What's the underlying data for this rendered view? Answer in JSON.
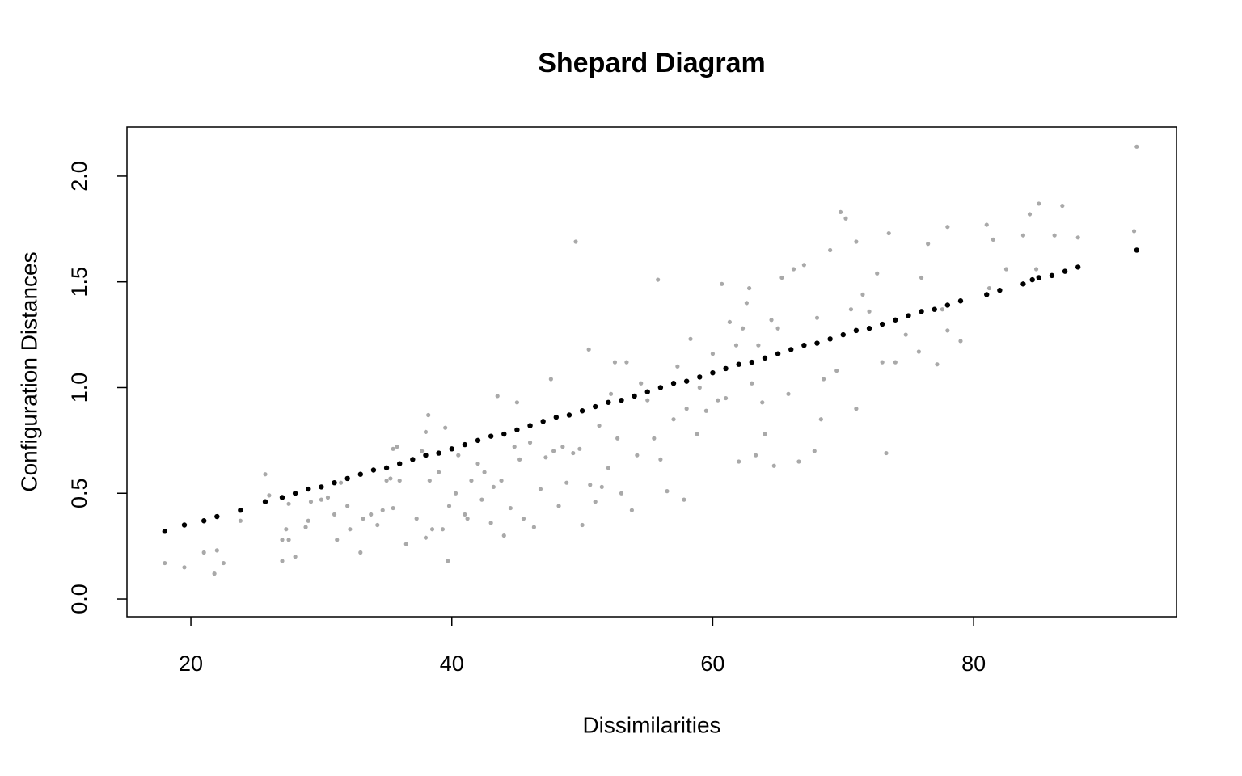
{
  "chart_data": {
    "type": "scatter",
    "title": "Shepard Diagram",
    "x_label": "Dissimilarities",
    "y_label": "Configuration Distances",
    "xlim": [
      15.1,
      95.55
    ],
    "xticks": [
      20,
      40,
      60,
      80
    ],
    "ylim": [
      -0.084,
      2.233
    ],
    "yticks": [
      {
        "value": 0,
        "label": "0.0"
      },
      0.5,
      {
        "value": 1,
        "label": "1.0"
      },
      1.5,
      {
        "value": 2,
        "label": "2.0"
      }
    ],
    "series": [
      {
        "color": "#a9a9a9",
        "x": [
          18,
          19.5,
          21,
          21.8,
          22,
          22.5,
          23.8,
          25.7,
          26,
          27,
          27,
          27.3,
          27.5,
          27.5,
          28,
          28.8,
          29,
          29.2,
          30,
          30.5,
          31,
          31.2,
          31.5,
          32,
          32.2,
          33,
          33.2,
          33.8,
          34.3,
          34.7,
          35,
          35.3,
          35.5,
          35.5,
          35.8,
          36,
          36.5,
          37.3,
          37.7,
          38,
          38,
          38.2,
          38.3,
          38.5,
          39,
          39.3,
          39.5,
          39.7,
          39.8,
          40.3,
          40.5,
          41,
          41.2,
          41.5,
          42,
          42.3,
          42.5,
          43,
          43.2,
          43.5,
          43.8,
          44,
          44.5,
          44.8,
          45,
          45.2,
          45.5,
          46,
          46.3,
          46.8,
          47.2,
          47.6,
          47.8,
          48.2,
          48.5,
          48.8,
          49,
          49.3,
          49.5,
          49.8,
          50,
          50.5,
          50.6,
          51,
          51.3,
          51.5,
          52,
          52.2,
          52.5,
          52.7,
          53,
          53.4,
          53.8,
          54.2,
          54.5,
          55,
          55.5,
          55.8,
          56,
          56.5,
          57,
          57.3,
          57.8,
          58,
          58.3,
          58.8,
          59,
          59.5,
          60,
          60.4,
          60.7,
          61,
          61.3,
          61.8,
          62,
          62.3,
          62.6,
          62.8,
          63,
          63.3,
          63.5,
          63.8,
          64,
          64.5,
          64.7,
          65,
          65.3,
          65.8,
          66.2,
          66.6,
          67,
          67.8,
          68,
          68.3,
          68.5,
          69,
          69.5,
          69.8,
          70.2,
          70.6,
          71,
          71,
          71.5,
          72,
          72.6,
          73,
          73.3,
          73.5,
          74,
          74.8,
          75.8,
          76,
          76.5,
          77.2,
          77.6,
          78,
          78,
          79,
          81,
          81.2,
          81.5,
          82.5,
          83.8,
          84.3,
          84.8,
          85,
          86.2,
          86.8,
          88,
          92.5,
          92.3
        ],
        "values": [
          0.17,
          0.15,
          0.22,
          0.12,
          0.23,
          0.17,
          0.37,
          0.59,
          0.49,
          0.28,
          0.18,
          0.33,
          0.28,
          0.45,
          0.2,
          0.34,
          0.37,
          0.46,
          0.47,
          0.48,
          0.4,
          0.28,
          0.55,
          0.44,
          0.33,
          0.22,
          0.38,
          0.4,
          0.35,
          0.42,
          0.56,
          0.57,
          0.43,
          0.71,
          0.72,
          0.56,
          0.26,
          0.38,
          0.7,
          0.79,
          0.29,
          0.87,
          0.56,
          0.33,
          0.6,
          0.33,
          0.81,
          0.18,
          0.44,
          0.5,
          0.68,
          0.4,
          0.38,
          0.56,
          0.64,
          0.47,
          0.6,
          0.36,
          0.53,
          0.96,
          0.56,
          0.3,
          0.43,
          0.72,
          0.93,
          0.66,
          0.38,
          0.74,
          0.34,
          0.52,
          0.67,
          1.04,
          0.7,
          0.44,
          0.72,
          0.55,
          0.87,
          0.69,
          1.69,
          0.71,
          0.35,
          1.18,
          0.54,
          0.46,
          0.82,
          0.53,
          0.62,
          0.97,
          1.12,
          0.76,
          0.5,
          1.12,
          0.42,
          0.68,
          1.02,
          0.94,
          0.76,
          1.51,
          0.66,
          0.51,
          0.85,
          1.1,
          0.47,
          0.9,
          1.23,
          0.78,
          1.0,
          0.89,
          1.16,
          0.94,
          1.49,
          0.95,
          1.31,
          1.2,
          0.65,
          1.28,
          1.4,
          1.47,
          1.02,
          0.68,
          1.2,
          0.93,
          0.78,
          1.32,
          0.63,
          1.28,
          1.52,
          0.97,
          1.56,
          0.65,
          1.58,
          0.7,
          1.33,
          0.85,
          1.04,
          1.65,
          1.08,
          1.83,
          1.8,
          1.37,
          0.9,
          1.69,
          1.44,
          1.36,
          1.54,
          1.12,
          0.69,
          1.73,
          1.12,
          1.25,
          1.17,
          1.52,
          1.68,
          1.11,
          1.37,
          1.27,
          1.76,
          1.22,
          1.77,
          1.47,
          1.7,
          1.56,
          1.72,
          1.82,
          1.56,
          1.87,
          1.72,
          1.86,
          1.71,
          2.14,
          1.74
        ]
      },
      {
        "color": "#000000",
        "x": [
          18,
          19.5,
          21,
          22,
          23.8,
          25.7,
          27,
          28,
          29,
          30,
          31,
          32,
          33,
          34,
          35,
          36,
          37,
          38,
          39,
          40,
          41,
          42,
          43,
          44,
          45,
          46,
          47,
          48,
          49,
          50,
          51,
          52,
          53,
          54,
          55,
          56,
          57,
          58,
          59,
          60,
          61,
          62,
          63,
          64,
          65,
          66,
          67,
          68,
          69,
          70,
          71,
          72,
          73,
          74,
          75,
          76,
          77,
          78,
          79,
          81,
          82,
          83.8,
          84.5,
          85,
          86,
          87,
          88,
          92.5
        ],
        "values": [
          0.32,
          0.35,
          0.37,
          0.39,
          0.42,
          0.46,
          0.48,
          0.5,
          0.52,
          0.53,
          0.55,
          0.57,
          0.59,
          0.61,
          0.62,
          0.64,
          0.66,
          0.68,
          0.69,
          0.71,
          0.73,
          0.75,
          0.77,
          0.78,
          0.8,
          0.82,
          0.84,
          0.86,
          0.87,
          0.89,
          0.91,
          0.93,
          0.94,
          0.96,
          0.98,
          1.0,
          1.02,
          1.03,
          1.05,
          1.07,
          1.09,
          1.11,
          1.12,
          1.14,
          1.16,
          1.18,
          1.2,
          1.21,
          1.23,
          1.25,
          1.27,
          1.28,
          1.3,
          1.32,
          1.34,
          1.36,
          1.37,
          1.39,
          1.41,
          1.44,
          1.46,
          1.49,
          1.51,
          1.52,
          1.53,
          1.55,
          1.57,
          1.65
        ]
      }
    ]
  }
}
